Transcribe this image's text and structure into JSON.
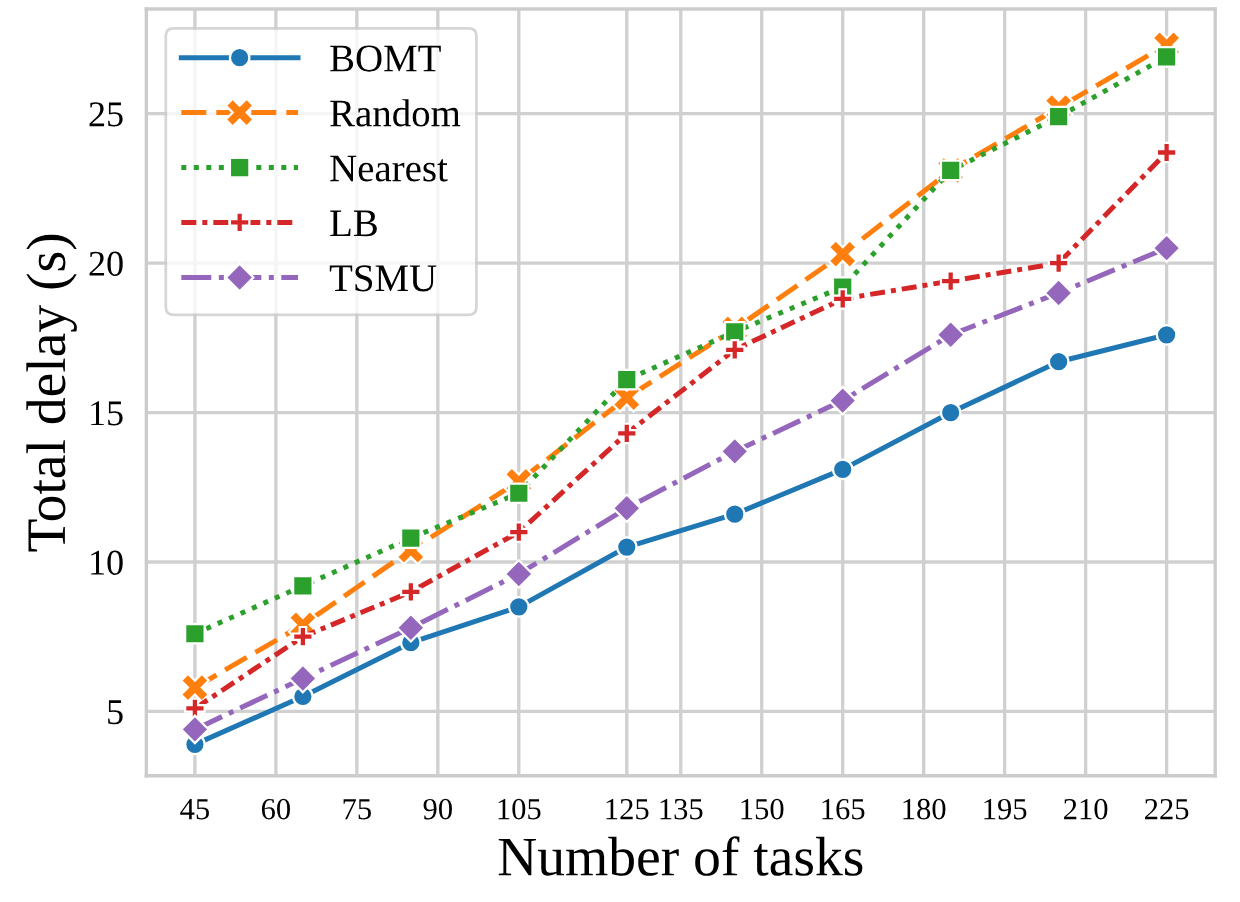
{
  "chart_data": {
    "type": "line",
    "xlabel": "Number of tasks",
    "ylabel": "Total delay (s)",
    "x": [
      45,
      65,
      85,
      105,
      125,
      145,
      165,
      185,
      205,
      225
    ],
    "xlim": [
      36,
      234
    ],
    "ylim": [
      2.85,
      28.5
    ],
    "xticks": [
      45,
      {
        "value": 60,
        "label": "60"
      },
      75,
      90,
      105,
      125,
      135,
      150,
      165,
      180,
      195,
      210,
      225
    ],
    "yticks": [
      5,
      10,
      15,
      20,
      25
    ],
    "grid": true,
    "legend": "top left",
    "series": [
      {
        "name": "BOMT",
        "color": "#1f77b4",
        "marker": "circle",
        "line_style": "solid",
        "values": [
          3.9,
          5.5,
          7.3,
          8.5,
          10.5,
          11.6,
          13.1,
          15.0,
          16.7,
          17.6
        ]
      },
      {
        "name": "Random",
        "color": "#ff7f0e",
        "marker": "cross",
        "line_style": "dashed",
        "values": [
          5.8,
          7.9,
          10.4,
          12.7,
          15.5,
          17.8,
          20.3,
          23.1,
          25.2,
          27.3
        ]
      },
      {
        "name": "Nearest",
        "color": "#2ca02c",
        "marker": "square",
        "line_style": "dotted",
        "values": [
          7.6,
          9.2,
          10.8,
          12.3,
          16.1,
          17.7,
          19.2,
          23.1,
          24.9,
          26.9
        ]
      },
      {
        "name": "LB",
        "color": "#d62728",
        "marker": "plus",
        "line_style": "densedashdot",
        "values": [
          5.1,
          7.5,
          9.0,
          11.0,
          14.3,
          17.1,
          18.8,
          19.4,
          20.0,
          23.7
        ]
      },
      {
        "name": "TSMU",
        "color": "#9467bd",
        "marker": "diamond",
        "line_style": "dashdot",
        "values": [
          4.4,
          6.1,
          7.8,
          9.6,
          11.8,
          13.7,
          15.4,
          17.6,
          19.0,
          20.5
        ]
      }
    ]
  }
}
